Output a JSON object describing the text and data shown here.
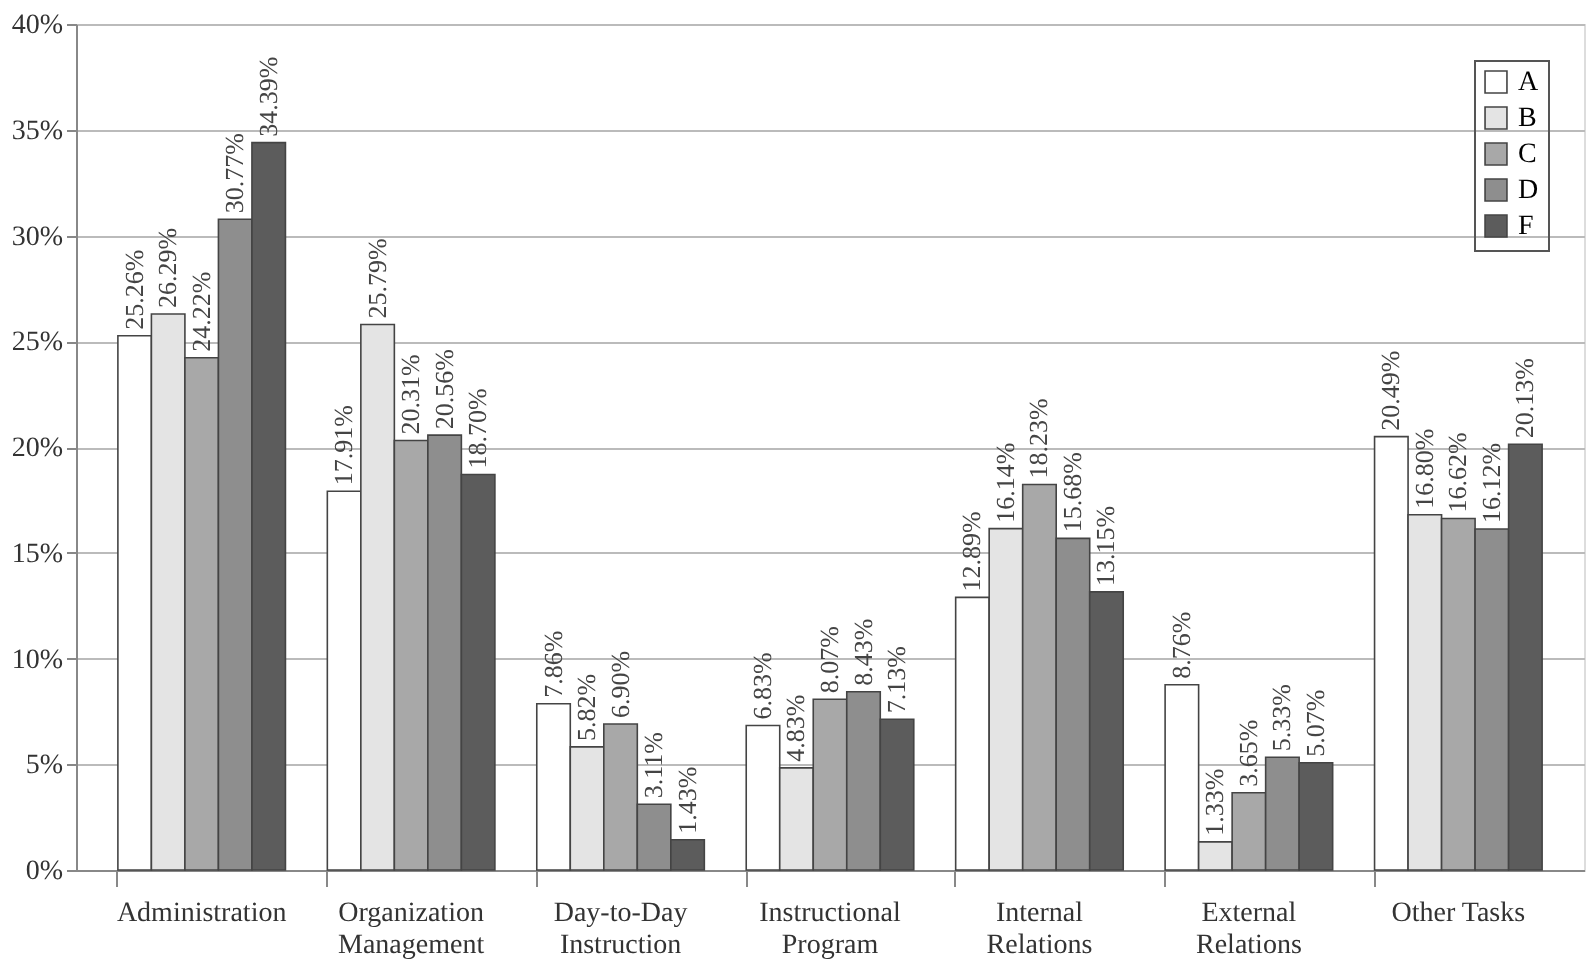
{
  "chart_data": {
    "type": "bar",
    "categories": [
      "Administration",
      "Organization Management",
      "Day-to-Day Instruction",
      "Instructional Program",
      "Internal Relations",
      "External Relations",
      "Other Tasks"
    ],
    "series": [
      {
        "name": "A",
        "color": "#ffffff",
        "values": [
          25.26,
          17.91,
          7.86,
          6.83,
          12.89,
          8.76,
          20.49
        ],
        "value_labels": [
          "25.26%",
          "17.91%",
          "7.86%",
          "6.83%",
          "12.89%",
          "8.76%",
          "20.49%"
        ]
      },
      {
        "name": "B",
        "color": "#e4e4e4",
        "values": [
          26.29,
          25.79,
          5.82,
          4.83,
          16.14,
          1.33,
          16.8
        ],
        "value_labels": [
          "26.29%",
          "25.79%",
          "5.82%",
          "4.83%",
          "16.14%",
          "1.33%",
          "16.80%"
        ]
      },
      {
        "name": "C",
        "color": "#a8a8a8",
        "values": [
          24.22,
          20.31,
          6.9,
          8.07,
          18.23,
          3.65,
          16.62
        ],
        "value_labels": [
          "24.22%",
          "20.31%",
          "6.90%",
          "8.07%",
          "18.23%",
          "3.65%",
          "16.62%"
        ]
      },
      {
        "name": "D",
        "color": "#8e8e8e",
        "values": [
          30.77,
          20.56,
          3.11,
          8.43,
          15.68,
          5.33,
          16.12
        ],
        "value_labels": [
          "30.77%",
          "20.56%",
          "3.11%",
          "8.43%",
          "15.68%",
          "5.33%",
          "16.12%"
        ]
      },
      {
        "name": "F",
        "color": "#5c5c5c",
        "values": [
          34.39,
          18.7,
          1.43,
          7.13,
          13.15,
          5.07,
          20.13
        ],
        "value_labels": [
          "34.39%",
          "18.70%",
          "1.43%",
          "7.13%",
          "13.15%",
          "5.07%",
          "20.13%"
        ]
      }
    ],
    "ylim": [
      0,
      40
    ],
    "yticks": [
      {
        "value": 0,
        "label": "0%"
      },
      {
        "value": 5,
        "label": "5%"
      },
      {
        "value": 10,
        "label": "10%"
      },
      {
        "value": 15,
        "label": "15%"
      },
      {
        "value": 20,
        "label": "20%"
      },
      {
        "value": 25,
        "label": "25%"
      },
      {
        "value": 30,
        "label": "30%"
      },
      {
        "value": 35,
        "label": "35%"
      },
      {
        "value": 40,
        "label": "40%"
      }
    ],
    "grid": "y",
    "legend": "top right"
  }
}
